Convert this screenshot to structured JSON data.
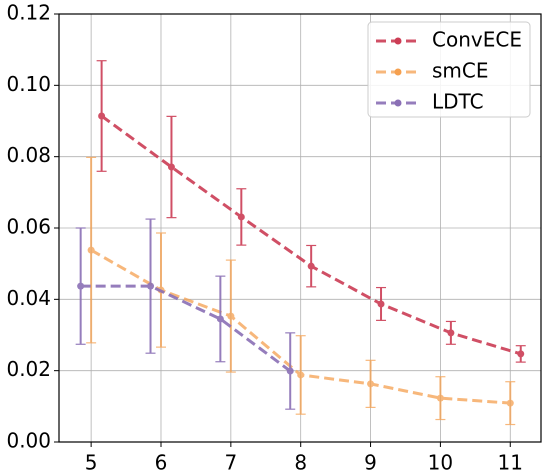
{
  "chart_data": {
    "type": "errorbar-line",
    "xlim": [
      4.54,
      11.44
    ],
    "xticks": [
      5,
      6,
      7,
      8,
      9,
      10,
      11
    ],
    "ylim": [
      0,
      0.12
    ],
    "yticks": [
      {
        "value": 0,
        "label": "0.00"
      },
      0.02,
      0.04,
      0.06,
      0.08,
      {
        "value": 0.1,
        "label": "0.10"
      },
      0.12
    ],
    "grid": true,
    "legend": "upper right",
    "series": [
      {
        "name": "ConvECE",
        "color": "#cc3d55",
        "x": [
          5.15,
          6.15,
          7.15,
          8.15,
          9.15,
          10.15,
          11.15
        ],
        "values": [
          0.0914,
          0.0771,
          0.0631,
          0.0493,
          0.0387,
          0.0306,
          0.0247
        ],
        "errors": [
          0.0155,
          0.0142,
          0.0079,
          0.0058,
          0.0046,
          0.0032,
          0.0023
        ]
      },
      {
        "name": "smCE",
        "color": "#f5a04f",
        "x": [
          5,
          6,
          7,
          8,
          9,
          10,
          11
        ],
        "values": [
          0.0538,
          0.0426,
          0.0353,
          0.0188,
          0.0163,
          0.0123,
          0.0109
        ],
        "errors": [
          0.026,
          0.016,
          0.0157,
          0.011,
          0.0066,
          0.006,
          0.006
        ]
      },
      {
        "name": "LDTC",
        "color": "#8a6fb5",
        "x": [
          4.85,
          5.85,
          6.85,
          7.85
        ],
        "values": [
          0.0437,
          0.0437,
          0.0345,
          0.0199
        ],
        "errors": [
          0.0163,
          0.0188,
          0.012,
          0.0107
        ]
      }
    ]
  }
}
